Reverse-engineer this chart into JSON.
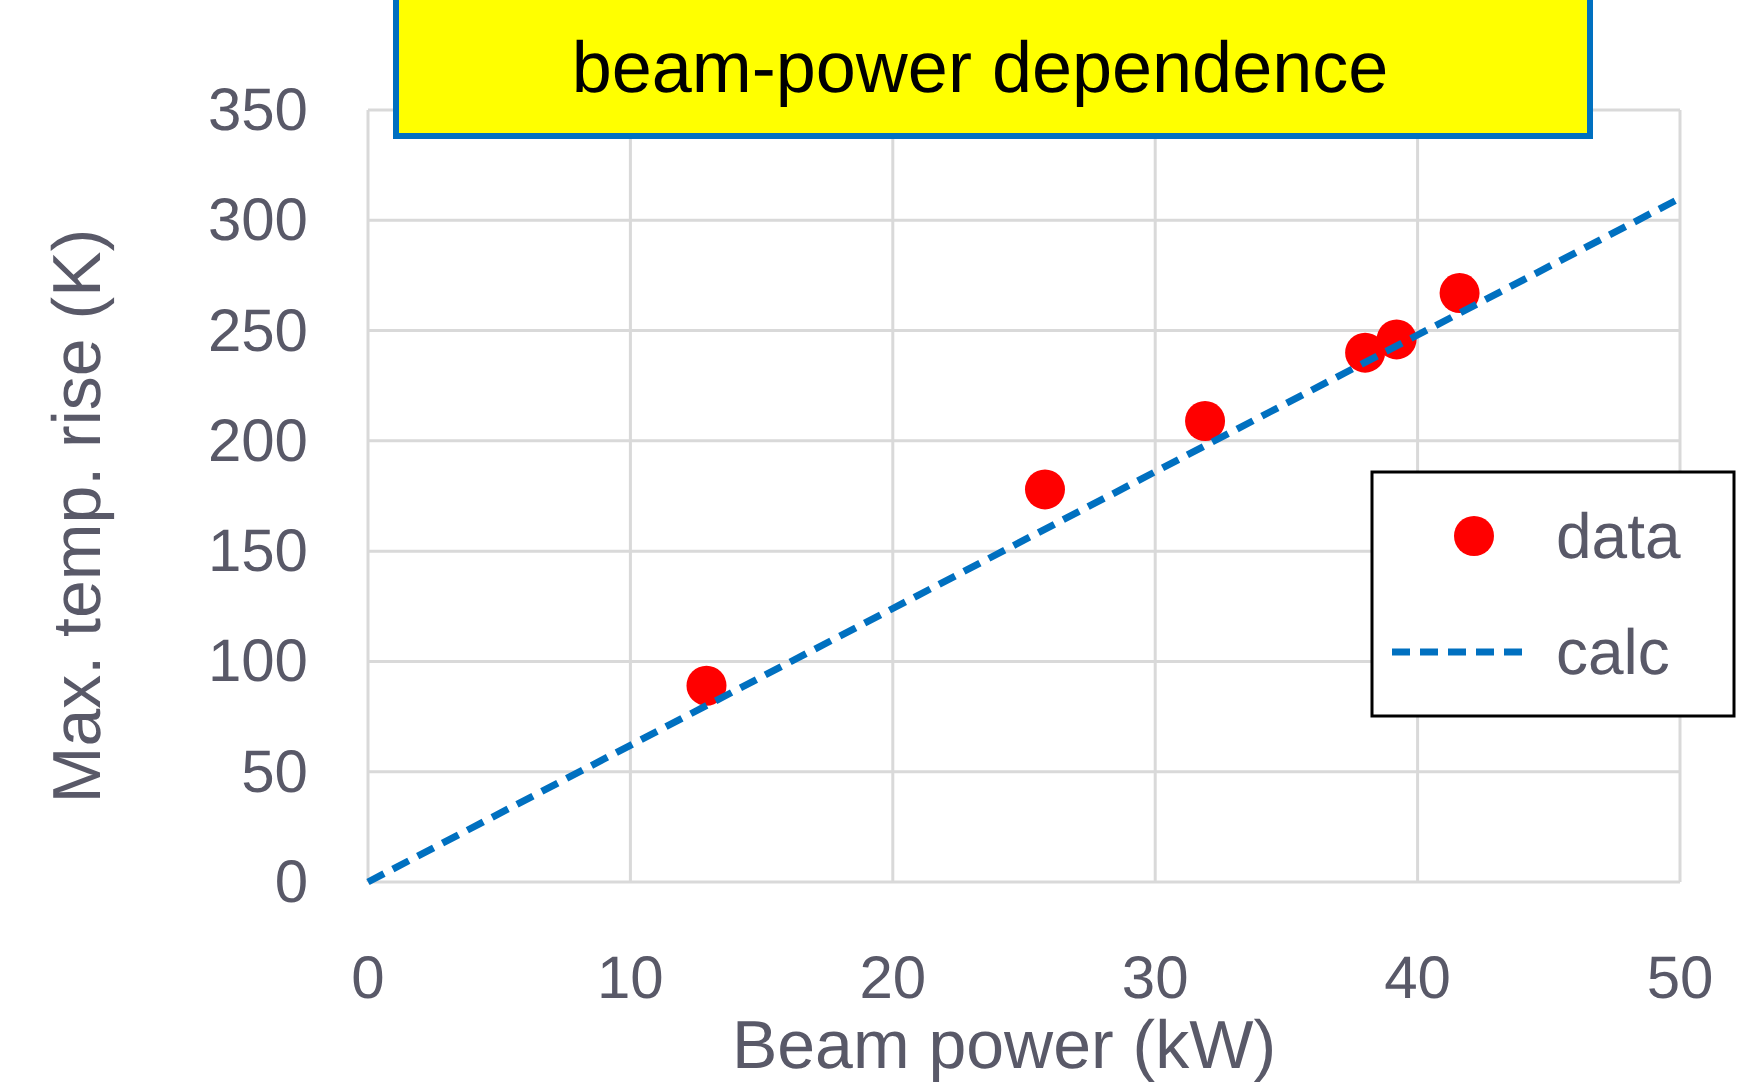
{
  "chart_data": {
    "type": "scatter",
    "title": "beam-power dependence",
    "xlabel": "Beam power (kW)",
    "ylabel": "Max. temp. rise (K)",
    "xlim": [
      0,
      50
    ],
    "xticks": [
      0,
      10,
      20,
      30,
      40,
      50
    ],
    "ylim": [
      0,
      350
    ],
    "yticks": [
      0,
      50,
      100,
      150,
      200,
      250,
      300,
      350
    ],
    "grid": true,
    "legend": "right",
    "series": [
      {
        "name": "data",
        "color": "#ff0000",
        "marker": "circle",
        "x": [
          12.9,
          25.8,
          31.9,
          38.0,
          39.2,
          41.6
        ],
        "values": [
          89,
          178,
          209,
          240,
          246,
          267
        ]
      },
      {
        "name": "calc",
        "type": "line",
        "color": "#0070c0",
        "line_style": "dashed",
        "marker": "none",
        "x": [
          0,
          50
        ],
        "values": [
          0,
          310
        ]
      }
    ]
  }
}
